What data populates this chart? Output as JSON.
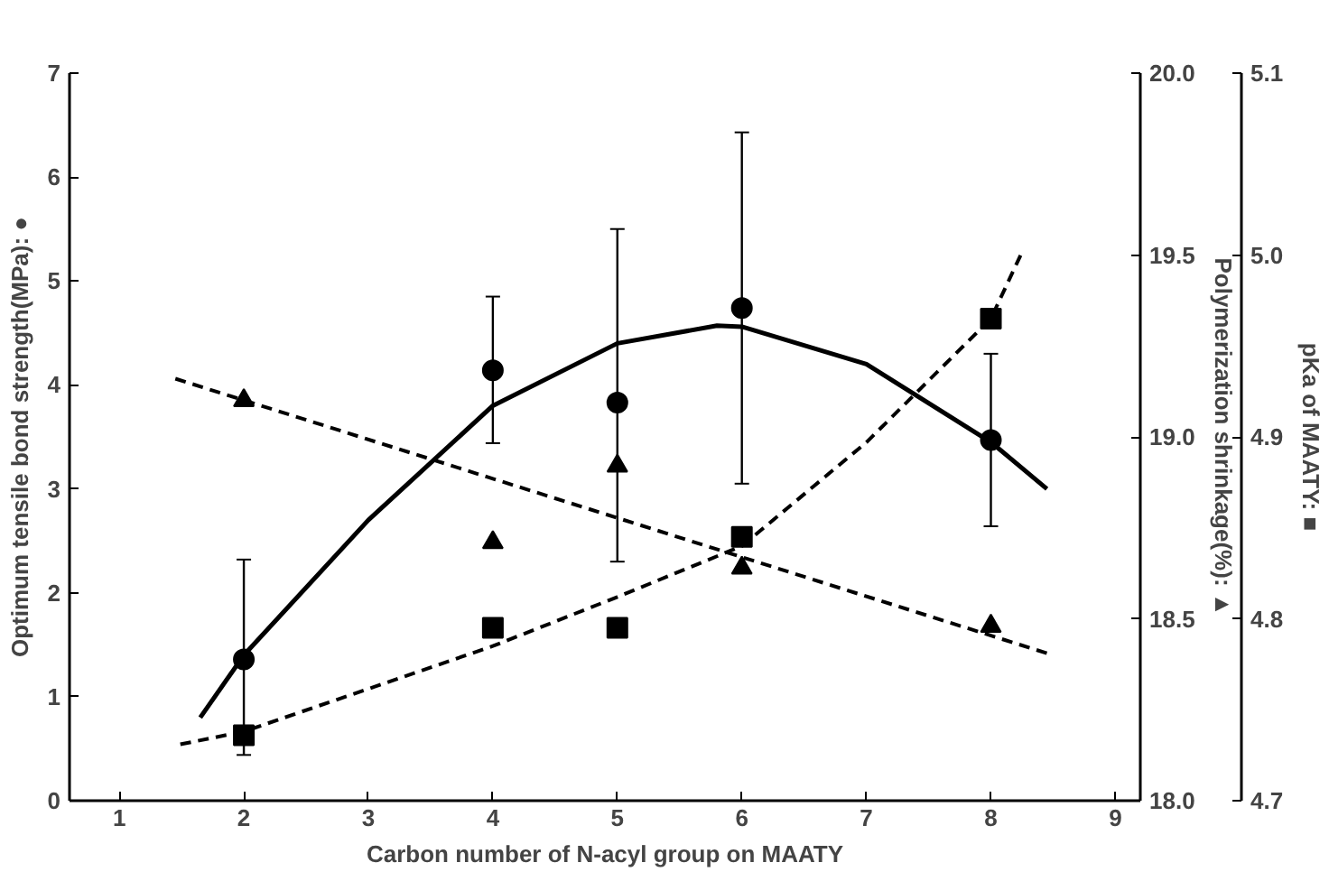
{
  "chart_data": {
    "type": "scatter",
    "xlabel": "Carbon number of N-acyl group on MAATY",
    "ylabel": "Optimum tensile bond strength(MPa): ●",
    "y2label": "Polymerization shrinkage(%): ▲",
    "y3label": "pKa of MAATY: ■",
    "xlim": [
      0.6,
      9.2
    ],
    "xticks": [
      1,
      2,
      3,
      4,
      5,
      6,
      7,
      8,
      9
    ],
    "ylim": [
      0,
      7
    ],
    "yticks": [
      0,
      1,
      2,
      3,
      4,
      5,
      6,
      7
    ],
    "y2lim": [
      18.0,
      20.0
    ],
    "y2ticks": [
      {
        "value": 18.0,
        "label": "18.0"
      },
      {
        "value": 18.5,
        "label": "18.5"
      },
      {
        "value": 19.0,
        "label": "19.0"
      },
      {
        "value": 19.5,
        "label": "19.5"
      },
      {
        "value": 20.0,
        "label": "20.0"
      }
    ],
    "y3lim": [
      4.7,
      5.1
    ],
    "y3ticks": [
      4.7,
      4.8,
      4.9,
      {
        "value": 5.0,
        "label": "5.0"
      },
      5.1
    ],
    "grid": false,
    "series": [
      {
        "marker": "circle",
        "color": "#000000",
        "x": [
          2,
          4,
          5,
          6,
          8
        ],
        "values": [
          1.36,
          4.14,
          3.83,
          4.74,
          3.47
        ],
        "errors": [
          [
            0.44,
            2.32
          ],
          [
            3.44,
            4.85
          ],
          [
            2.3,
            5.5
          ],
          [
            3.05,
            6.43
          ],
          [
            2.64,
            4.3
          ]
        ]
      },
      {
        "marker": "triangle",
        "color": "#000000",
        "axis": "y2",
        "x": [
          2,
          4,
          5,
          6,
          8
        ],
        "values": [
          19.1,
          18.71,
          18.92,
          18.64,
          18.48
        ]
      },
      {
        "marker": "square",
        "color": "#000000",
        "axis": "y3",
        "x": [
          2,
          4,
          5,
          6,
          8
        ],
        "values": [
          4.736,
          4.795,
          4.795,
          4.845,
          4.965
        ]
      },
      {
        "type": "line",
        "line_style": "solid",
        "color": "#000000",
        "x": [
          1.65,
          2,
          3,
          4,
          5,
          5.8,
          6,
          7,
          8,
          8.45
        ],
        "values": [
          0.8,
          1.4,
          2.7,
          3.8,
          4.4,
          4.57,
          4.56,
          4.2,
          3.45,
          3.0
        ]
      },
      {
        "type": "line",
        "line_style": "dashed",
        "color": "#000000",
        "axis": "y2",
        "x": [
          1.45,
          8.5
        ],
        "values": [
          19.16,
          18.4
        ]
      },
      {
        "type": "line",
        "line_style": "dashed",
        "color": "#000000",
        "axis": "y3",
        "x": [
          1.49,
          2,
          4,
          5,
          6,
          7,
          8,
          8.26
        ],
        "values": [
          4.731,
          4.738,
          4.785,
          4.812,
          4.84,
          4.897,
          4.965,
          5.003
        ]
      }
    ]
  }
}
